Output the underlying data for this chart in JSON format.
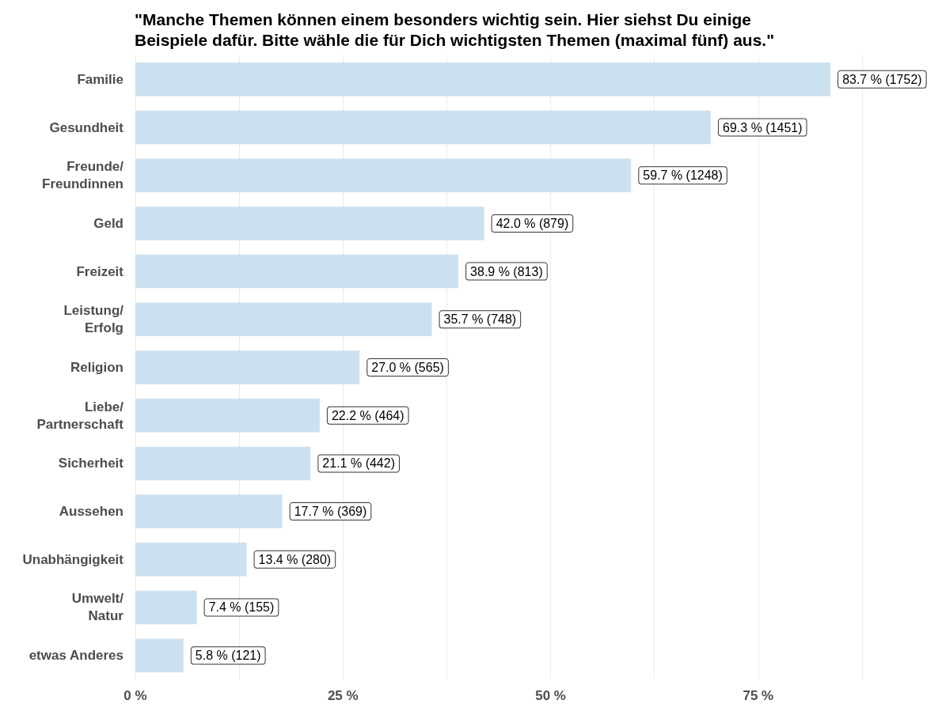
{
  "chart_data": {
    "type": "bar",
    "orientation": "horizontal",
    "title": "\"Manche Themen können einem besonders wichtig sein. Hier siehst Du einige\nBeispiele dafür. Bitte wähle die für Dich wichtigsten Themen (maximal fünf) aus.\"",
    "categories": [
      "Familie",
      "Gesundheit",
      "Freunde/\nFreundinnen",
      "Geld",
      "Freizeit",
      "Leistung/\nErfolg",
      "Religion",
      "Liebe/\nPartnerschaft",
      "Sicherheit",
      "Aussehen",
      "Unabhängigkeit",
      "Umwelt/\nNatur",
      "etwas Anderes"
    ],
    "values": [
      83.7,
      69.3,
      59.7,
      42.0,
      38.9,
      35.7,
      27.0,
      22.2,
      21.1,
      17.7,
      13.4,
      7.4,
      5.8
    ],
    "value_labels": [
      "83.7 % (1752)",
      "69.3 % (1451)",
      "59.7 % (1248)",
      "42.0 % (879)",
      "38.9 % (813)",
      "35.7 % (748)",
      "27.0 % (565)",
      "22.2 % (464)",
      "21.1 % (442)",
      "17.7 % (369)",
      "13.4 % (280)",
      "7.4 % (155)",
      "5.8 % (121)"
    ],
    "color": "#cce1ef",
    "xlim": [
      0,
      87.5
    ],
    "xticks": [
      {
        "value": 0,
        "label": "0 %"
      },
      {
        "value": 12.5,
        "label": null
      },
      {
        "value": 25,
        "label": "25 %"
      },
      {
        "value": 37.5,
        "label": null
      },
      {
        "value": 50,
        "label": "50 %"
      },
      {
        "value": 62.5,
        "label": null
      },
      {
        "value": 75,
        "label": "75 %"
      },
      {
        "value": 87.5,
        "label": null
      }
    ],
    "grid": "x"
  }
}
